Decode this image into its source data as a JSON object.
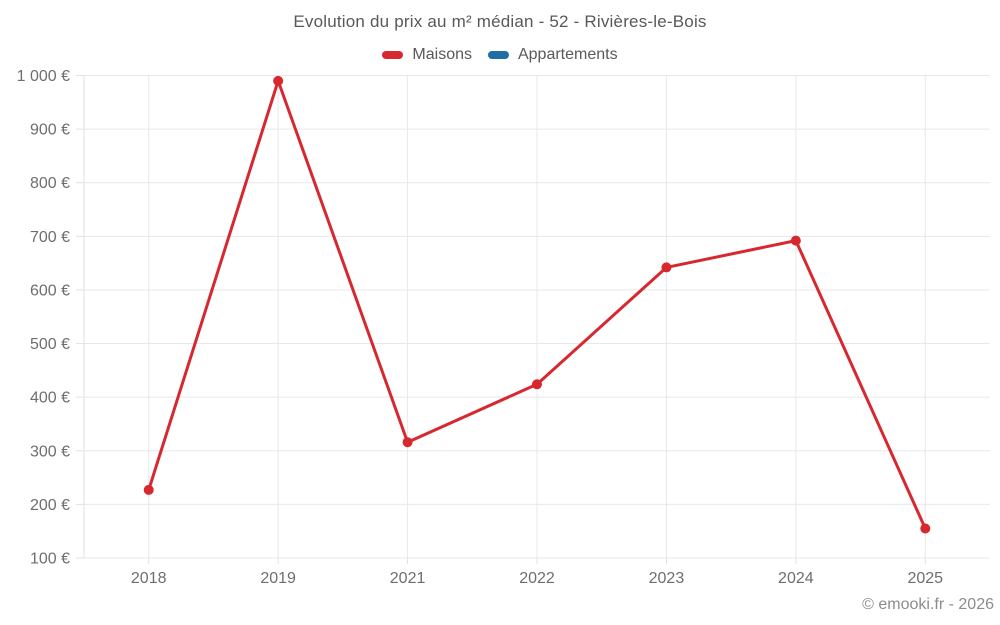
{
  "chart_data": {
    "type": "line",
    "title": "Evolution du prix au m² médian - 52 - Rivières-le-Bois",
    "categories": [
      "2018",
      "2019",
      "2021",
      "2022",
      "2023",
      "2024",
      "2025"
    ],
    "series": [
      {
        "name": "Maisons",
        "color": "#d7282f",
        "values": [
          227,
          990,
          316,
          424,
          642,
          692,
          155
        ]
      },
      {
        "name": "Appartements",
        "color": "#1c6ea4",
        "values": []
      }
    ],
    "y_unit": "€",
    "ylim": [
      100,
      1000
    ],
    "y_ticks": [
      100,
      200,
      300,
      400,
      500,
      600,
      700,
      800,
      900,
      1000
    ],
    "y_tick_labels": [
      "100 €",
      "200 €",
      "300 €",
      "400 €",
      "500 €",
      "600 €",
      "700 €",
      "800 €",
      "900 €",
      "1 000 €"
    ],
    "grid": true,
    "legend_position": "top"
  },
  "footer": {
    "text": "© emooki.fr - 2026"
  }
}
